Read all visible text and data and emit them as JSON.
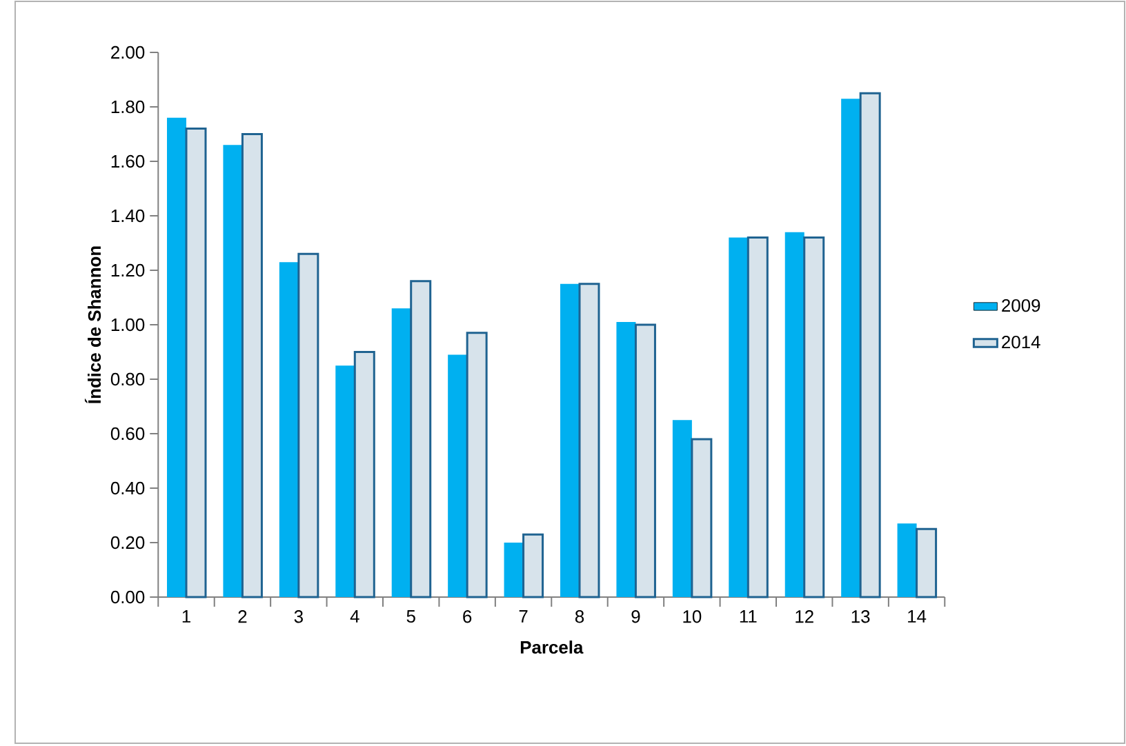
{
  "chart_data": {
    "type": "bar",
    "xlabel": "Parcela",
    "ylabel": "Índice de Shannon",
    "categories": [
      "1",
      "2",
      "3",
      "4",
      "5",
      "6",
      "7",
      "8",
      "9",
      "10",
      "11",
      "12",
      "13",
      "14"
    ],
    "series": [
      {
        "name": "2009",
        "color": "#00b0f0",
        "values": [
          1.76,
          1.66,
          1.23,
          0.85,
          1.06,
          0.89,
          0.2,
          1.15,
          1.01,
          0.65,
          1.32,
          1.34,
          1.83,
          0.27
        ]
      },
      {
        "name": "2014",
        "color": "#1f6391",
        "values": [
          1.72,
          1.7,
          1.26,
          0.9,
          1.16,
          0.97,
          0.23,
          1.15,
          1.0,
          0.58,
          1.32,
          1.32,
          1.85,
          0.25
        ]
      }
    ],
    "ylim": [
      0,
      2
    ],
    "yticks": [
      {
        "value": 0,
        "label": "0.00"
      },
      {
        "value": 0.2,
        "label": "0.20"
      },
      {
        "value": 0.4,
        "label": "0.40"
      },
      {
        "value": 0.6,
        "label": "0.60"
      },
      {
        "value": 0.8,
        "label": "0.80"
      },
      {
        "value": 1,
        "label": "1.00"
      },
      {
        "value": 1.2,
        "label": "1.20"
      },
      {
        "value": 1.4,
        "label": "1.40"
      },
      {
        "value": 1.6,
        "label": "1.60"
      },
      {
        "value": 1.8,
        "label": "1.80"
      },
      {
        "value": 2,
        "label": "2.00"
      }
    ],
    "grid": false,
    "legend": "right"
  }
}
